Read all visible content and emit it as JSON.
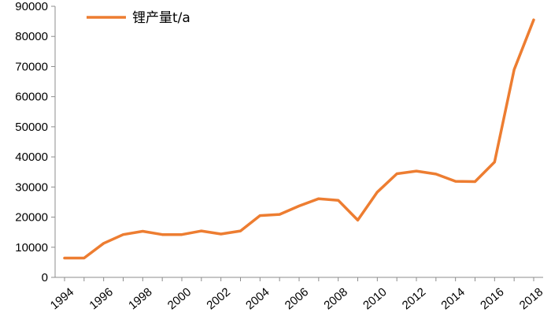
{
  "chart_data": {
    "type": "line",
    "title": "",
    "xlabel": "",
    "ylabel": "",
    "x": [
      1994,
      1995,
      1996,
      1997,
      1998,
      1999,
      2000,
      2001,
      2002,
      2003,
      2004,
      2005,
      2006,
      2007,
      2008,
      2009,
      2010,
      2011,
      2012,
      2013,
      2014,
      2015,
      2016,
      2017,
      2018
    ],
    "x_tick_labels": [
      "1994",
      "1996",
      "1998",
      "2000",
      "2002",
      "2004",
      "2006",
      "2008",
      "2010",
      "2012",
      "2014",
      "2016",
      "2018"
    ],
    "ylim": [
      0,
      90000
    ],
    "y_tick_labels": [
      "0",
      "10000",
      "20000",
      "30000",
      "40000",
      "50000",
      "60000",
      "70000",
      "80000",
      "90000"
    ],
    "grid": false,
    "legend_position": "top-left",
    "series": [
      {
        "name": "锂产量t/a",
        "color": "#ED7D31",
        "values": [
          6400,
          6400,
          11300,
          14200,
          15300,
          14200,
          14200,
          15400,
          14400,
          15400,
          20500,
          20900,
          23700,
          26100,
          25600,
          19000,
          28300,
          34400,
          35300,
          34300,
          31900,
          31800,
          38300,
          69000,
          85500
        ]
      }
    ]
  }
}
